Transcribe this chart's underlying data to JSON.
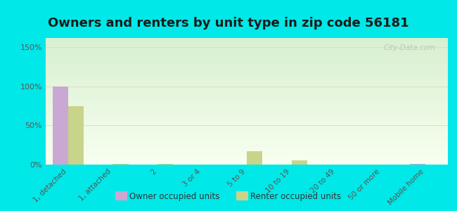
{
  "title": "Owners and renters by unit type in zip code 56181",
  "categories": [
    "1, detached",
    "1, attached",
    "2",
    "3 or 4",
    "5 to 9",
    "10 to 19",
    "20 to 49",
    "50 or more",
    "Mobile home"
  ],
  "owner_values": [
    100,
    0,
    0,
    0,
    0,
    0,
    0,
    0,
    1
  ],
  "renter_values": [
    75,
    1,
    1,
    0,
    17,
    5,
    0,
    0,
    0
  ],
  "owner_color": "#c9a8d4",
  "renter_color": "#c8d48a",
  "background_color": "#00e8e8",
  "plot_bg_color_top": "#f8fff0",
  "plot_bg_color_bottom": "#d8f0d0",
  "yticks": [
    0,
    50,
    100,
    150
  ],
  "ylim": [
    0,
    162
  ],
  "bar_width": 0.35,
  "title_fontsize": 13,
  "watermark": "City-Data.com"
}
